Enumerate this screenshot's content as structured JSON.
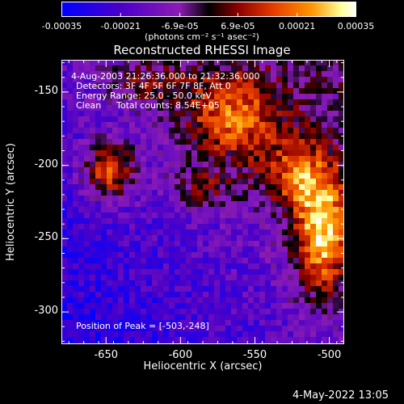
{
  "chart_data": {
    "type": "heatmap",
    "title": "Reconstructed RHESSI Image",
    "xlabel": "Heliocentric X (arcsec)",
    "ylabel": "Heliocentric Y (arcsec)",
    "xlim": [
      -680,
      -490
    ],
    "ylim": [
      -322,
      -128
    ],
    "x_ticks": [
      "-650",
      "-600",
      "-550",
      "-500"
    ],
    "x_tick_values": [
      -650,
      -600,
      -550,
      -500
    ],
    "y_ticks": [
      "-150",
      "-200",
      "-250",
      "-300"
    ],
    "y_tick_values": [
      -150,
      -200,
      -250,
      -300
    ],
    "colorbar": {
      "ticks": [
        "-0.00035",
        "-0.00021",
        "-6.9e-05",
        "6.9e-05",
        "0.00021",
        "0.00035"
      ],
      "tick_values": [
        -0.00035,
        -0.00021,
        -6.9e-05,
        6.9e-05,
        0.00021,
        0.00035
      ],
      "range": [
        -0.00035,
        0.00035
      ],
      "units_label": "(photons cm⁻² s⁻¹ asec⁻²)"
    },
    "annotations": {
      "time_range": "4-Aug-2003 21:26:36.000 to 21:32:36.000",
      "detectors": "Detectors: 3F 4F 5F 6F 7F 8F, Att 0",
      "energy": "Energy Range: 25.0 - 50.0 keV",
      "method": "Clean",
      "counts": "Total counts: 8.54E+05",
      "peak": "Position of Peak = [-503,-248]"
    },
    "peak_position": [
      -503,
      -248
    ],
    "colors": {
      "background": "#000000",
      "colormap_stops": [
        "#0000ff",
        "#4a00c8",
        "#8c1cb4",
        "#000000",
        "#8c0000",
        "#e63c00",
        "#ff9600",
        "#ffff99",
        "#ffffff"
      ]
    }
  },
  "footer": {
    "timestamp": "4-May-2022 13:05"
  }
}
